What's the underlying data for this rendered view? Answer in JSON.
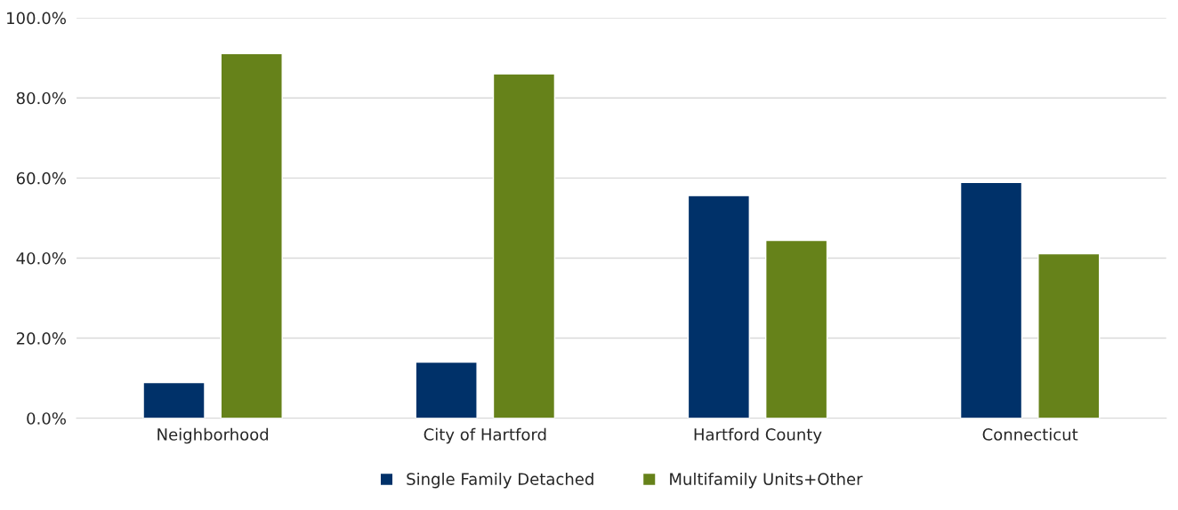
{
  "chart_data": {
    "type": "bar",
    "categories": [
      "Neighborhood",
      "City of Hartford",
      "Hartford County",
      "Connecticut"
    ],
    "series": [
      {
        "name": "Single Family Detached",
        "color": "#003169",
        "values": [
          8.9,
          14.0,
          55.6,
          58.9
        ]
      },
      {
        "name": "Multifamily Units+Other",
        "color": "#66821a",
        "values": [
          91.1,
          86.0,
          44.4,
          41.1
        ]
      }
    ],
    "ylim": [
      0,
      100
    ],
    "yticks": [
      {
        "value": 0,
        "label": "0.0%"
      },
      {
        "value": 20,
        "label": "20.0%"
      },
      {
        "value": 40,
        "label": "40.0%"
      },
      {
        "value": 60,
        "label": "60.0%"
      },
      {
        "value": 80,
        "label": "80.0%"
      },
      {
        "value": 100,
        "label": "100.0%"
      }
    ],
    "grid": "y",
    "legend": "bottom"
  }
}
